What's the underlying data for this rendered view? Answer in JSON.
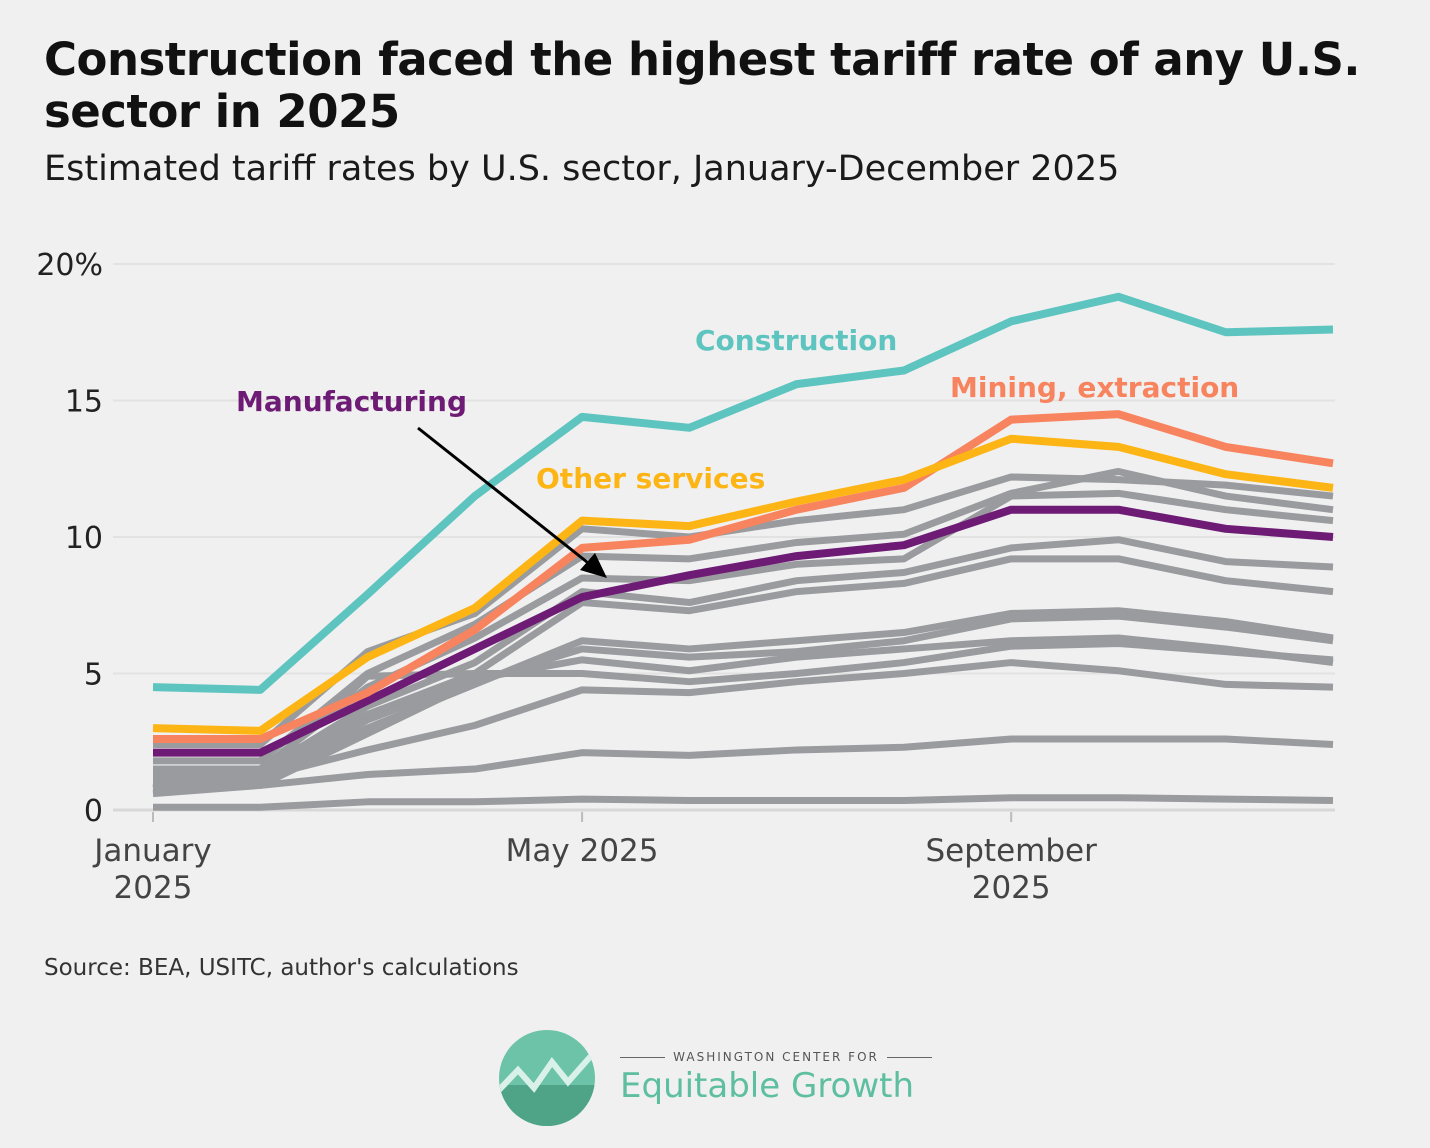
{
  "title": "Construction faced the highest tariff rate of any U.S. sector in 2025",
  "subtitle": "Estimated tariff rates by U.S. sector, January-December 2025",
  "source": "Source: BEA, USITC, author's calculations",
  "logo": {
    "top_text": "WASHINGTON CENTER FOR",
    "main_text": "Equitable Growth"
  },
  "chart_data": {
    "type": "line",
    "x": [
      "2025-01",
      "2025-02",
      "2025-03",
      "2025-04",
      "2025-05",
      "2025-06",
      "2025-07",
      "2025-08",
      "2025-09",
      "2025-10",
      "2025-11",
      "2025-12"
    ],
    "ylim": [
      0,
      20
    ],
    "y_ticks": [
      {
        "value": 20,
        "label": "20%"
      },
      {
        "value": 15,
        "label": "15"
      },
      {
        "value": 10,
        "label": "10"
      },
      {
        "value": 5,
        "label": "5"
      },
      {
        "value": 0,
        "label": "0"
      }
    ],
    "x_ticks": [
      {
        "index": 0,
        "label": [
          "January",
          "2025"
        ]
      },
      {
        "index": 4,
        "label": [
          "May 2025"
        ]
      },
      {
        "index": 8,
        "label": [
          "September",
          "2025"
        ]
      }
    ],
    "grid": true,
    "highlight_series": [
      {
        "name": "Construction",
        "color": "#5ec4bf",
        "values": [
          4.5,
          4.4,
          7.9,
          11.5,
          14.4,
          14.0,
          15.6,
          16.1,
          17.9,
          18.8,
          17.5,
          17.6
        ]
      },
      {
        "name": "Mining, extraction",
        "color": "#f7845e",
        "values": [
          2.6,
          2.6,
          4.3,
          6.6,
          9.6,
          9.9,
          11.0,
          11.8,
          14.3,
          14.5,
          13.3,
          12.7
        ]
      },
      {
        "name": "Other services",
        "color": "#fdb515",
        "values": [
          3.0,
          2.9,
          5.6,
          7.4,
          10.6,
          10.4,
          11.3,
          12.1,
          13.6,
          13.3,
          12.3,
          11.8
        ]
      },
      {
        "name": "Manufacturing",
        "color": "#6d1b75",
        "values": [
          2.1,
          2.1,
          4.0,
          5.9,
          7.8,
          8.6,
          9.3,
          9.7,
          11.0,
          11.0,
          10.3,
          10.0
        ]
      }
    ],
    "other_series_color": "#999b9e",
    "other_series": [
      [
        2.4,
        2.4,
        5.8,
        7.2,
        10.3,
        10.0,
        10.6,
        11.0,
        12.2,
        12.1,
        11.9,
        11.5
      ],
      [
        1.8,
        1.8,
        5.0,
        6.8,
        9.3,
        9.2,
        9.8,
        10.1,
        11.6,
        12.4,
        11.5,
        11.0
      ],
      [
        1.5,
        1.5,
        4.5,
        6.3,
        8.5,
        8.4,
        9.0,
        9.2,
        11.5,
        11.6,
        11.0,
        10.6
      ],
      [
        1.4,
        1.4,
        3.8,
        5.4,
        8.0,
        7.6,
        8.4,
        8.7,
        9.6,
        9.9,
        9.1,
        8.9
      ],
      [
        1.2,
        1.2,
        3.5,
        5.0,
        7.6,
        7.3,
        8.0,
        8.3,
        9.2,
        9.2,
        8.4,
        8.0
      ],
      [
        1.0,
        1.0,
        3.0,
        4.6,
        6.2,
        5.9,
        6.2,
        6.5,
        7.2,
        7.3,
        6.9,
        6.3
      ],
      [
        0.9,
        0.9,
        2.8,
        4.7,
        5.9,
        5.6,
        5.8,
        6.2,
        7.0,
        7.1,
        6.7,
        6.2
      ],
      [
        0.8,
        1.0,
        3.3,
        4.8,
        5.5,
        5.1,
        5.6,
        5.9,
        6.2,
        6.3,
        5.9,
        5.4
      ],
      [
        1.3,
        1.3,
        4.9,
        5.0,
        5.0,
        4.7,
        5.0,
        5.4,
        6.0,
        6.1,
        5.8,
        5.5
      ],
      [
        0.8,
        1.2,
        2.2,
        3.1,
        4.4,
        4.3,
        4.7,
        5.0,
        5.4,
        5.1,
        4.6,
        4.5
      ],
      [
        0.6,
        0.9,
        1.3,
        1.5,
        2.1,
        2.0,
        2.2,
        2.3,
        2.6,
        2.6,
        2.6,
        2.4
      ],
      [
        0.1,
        0.1,
        0.3,
        0.3,
        0.4,
        0.35,
        0.35,
        0.35,
        0.45,
        0.45,
        0.4,
        0.35
      ]
    ]
  }
}
